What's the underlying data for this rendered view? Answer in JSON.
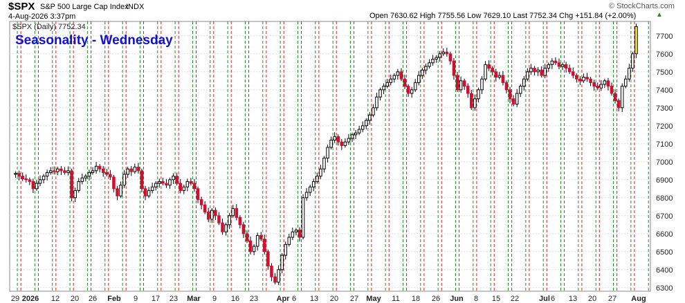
{
  "header": {
    "symbol": "$SPX",
    "name": "S&P 500 Large Cap Index",
    "exchange": "INDX",
    "timestamp": "4-Aug-2026 3:37pm",
    "ohlc": "Open 7630.62  High 7755.56  Low 7629.10  Last 7752.34  Chg +151.84 (+2.00%)",
    "chg_arrow": "▲",
    "source": "© StockCharts.com",
    "legend": "$SPX (Daily) 7752.34"
  },
  "chart_data": {
    "type": "candlestick",
    "title": "Seasonality - Wednesday",
    "ylim": [
      6280,
      7780
    ],
    "y_ticks": [
      6300,
      6400,
      6500,
      6600,
      6700,
      6800,
      6900,
      7000,
      7100,
      7200,
      7300,
      7400,
      7500,
      7600,
      7700
    ],
    "x_tick_labels": [
      "29",
      "2026",
      "12",
      "20",
      "26",
      "Feb",
      "9",
      "17",
      "23",
      "Mar",
      "9",
      "16",
      "23",
      "Apr",
      "6",
      "13",
      "20",
      "27",
      "May",
      "11",
      "18",
      "26",
      "Jun",
      "8",
      "15",
      "22",
      "Jul",
      "6",
      "13",
      "20",
      "27",
      "Aug"
    ],
    "bold_x_labels": [
      "2026",
      "Feb",
      "Mar",
      "Apr",
      "May",
      "Jun",
      "Jul",
      "Aug"
    ],
    "grid": "vertical weekly separators: green before Tuesday, red after Wednesday",
    "colors": {
      "up": "#ffffff",
      "down": "#cc1133",
      "wick": "#000000",
      "green_line": "#1f8f1f",
      "red_line": "#cc2222",
      "last_candle": "#f3ee66",
      "title": "#1111cc"
    },
    "close": [
      6935,
      6920,
      6905,
      6900,
      6890,
      6850,
      6880,
      6900,
      6920,
      6940,
      6950,
      6945,
      6960,
      6950,
      6940,
      6950,
      6800,
      6840,
      6890,
      6910,
      6920,
      6940,
      6950,
      6975,
      6960,
      6940,
      6930,
      6915,
      6850,
      6810,
      6870,
      6930,
      6960,
      6945,
      6970,
      6950,
      6850,
      6810,
      6840,
      6860,
      6880,
      6890,
      6880,
      6870,
      6900,
      6920,
      6880,
      6840,
      6860,
      6890,
      6880,
      6850,
      6790,
      6760,
      6720,
      6680,
      6730,
      6700,
      6660,
      6610,
      6650,
      6700,
      6740,
      6690,
      6650,
      6600,
      6560,
      6500,
      6530,
      6590,
      6570,
      6500,
      6420,
      6360,
      6330,
      6400,
      6480,
      6540,
      6580,
      6610,
      6620,
      6580,
      6800,
      6830,
      6860,
      6890,
      6920,
      6960,
      7020,
      7080,
      7120,
      7140,
      7110,
      7090,
      7110,
      7130,
      7150,
      7160,
      7180,
      7200,
      7230,
      7260,
      7300,
      7360,
      7400,
      7420,
      7440,
      7460,
      7480,
      7500,
      7460,
      7420,
      7380,
      7400,
      7440,
      7480,
      7510,
      7530,
      7550,
      7570,
      7580,
      7600,
      7610,
      7600,
      7560,
      7480,
      7400,
      7450,
      7420,
      7380,
      7300,
      7350,
      7400,
      7460,
      7540,
      7520,
      7500,
      7470,
      7480,
      7440,
      7400,
      7350,
      7320,
      7380,
      7420,
      7460,
      7500,
      7520,
      7500,
      7510,
      7480,
      7520,
      7540,
      7560,
      7550,
      7530,
      7540,
      7520,
      7500,
      7480,
      7460,
      7450,
      7470,
      7460,
      7440,
      7420,
      7410,
      7430,
      7450,
      7420,
      7380,
      7340,
      7300,
      7420,
      7460,
      7520,
      7600,
      7752
    ]
  }
}
